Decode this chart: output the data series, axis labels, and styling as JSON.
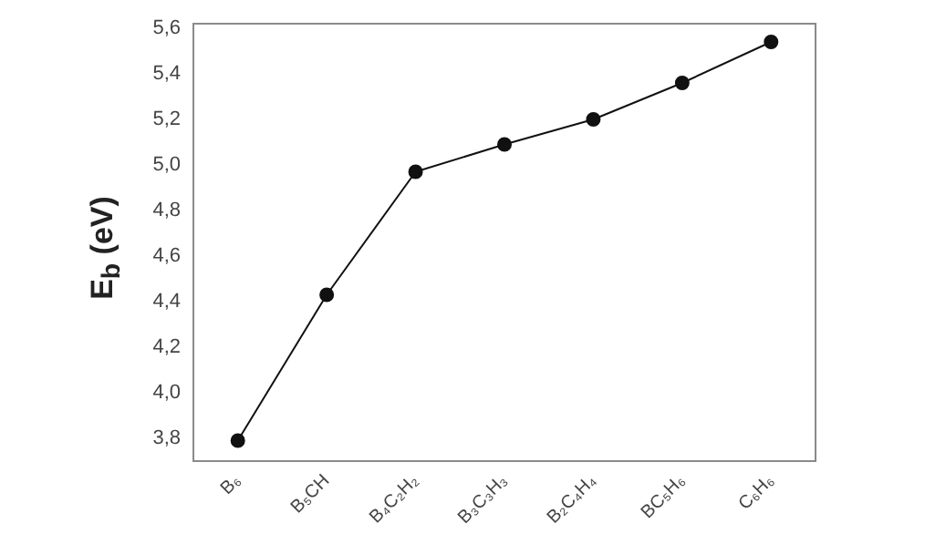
{
  "chart_data": {
    "type": "line",
    "ylabel": "E$_{b}$ (eV)",
    "categories": [
      "B₆",
      "B₅CH",
      "B₄C₂H₂",
      "B₃C₃H₃",
      "B₂C₄H₄",
      "BC₅H₆",
      "C₆H₆"
    ],
    "series": [
      {
        "color": "#111111",
        "values": [
          3.79,
          4.43,
          4.97,
          5.09,
          5.2,
          5.36,
          5.54
        ]
      }
    ],
    "ylim": [
      3.7,
      5.62
    ],
    "yticks": [
      {
        "value": 3.8,
        "label": "3,8"
      },
      {
        "value": 4.0,
        "label": "4,0"
      },
      {
        "value": 4.2,
        "label": "4,2"
      },
      {
        "value": 4.4,
        "label": "4,4"
      },
      {
        "value": 4.6,
        "label": "4,6"
      },
      {
        "value": 4.8,
        "label": "4,8"
      },
      {
        "value": 5.0,
        "label": "5,0"
      },
      {
        "value": 5.2,
        "label": "5,2"
      },
      {
        "value": 5.4,
        "label": "5,4"
      },
      {
        "value": 5.6,
        "label": "5,6"
      }
    ],
    "grid": false,
    "legend": false,
    "marker": "circle",
    "line_style": "solid"
  }
}
